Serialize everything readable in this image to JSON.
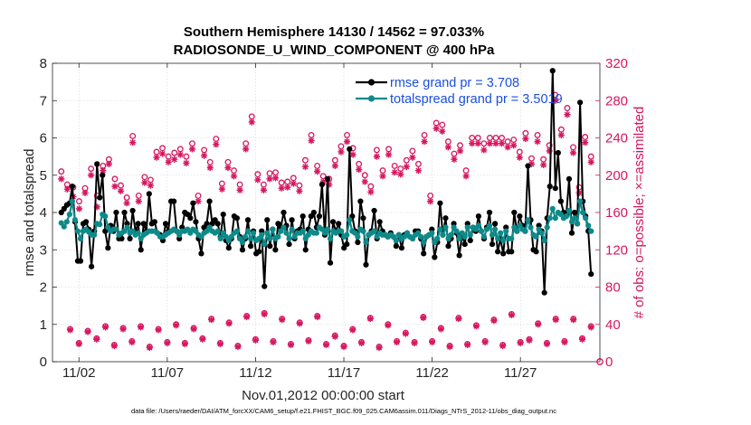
{
  "chart_data": {
    "type": "line",
    "title": "Southern Hemisphere 14130 / 14562 = 97.033%",
    "subtitle": "RADIOSONDE_U_WIND_COMPONENT @ 400 hPa",
    "xlabel": "Nov.01,2012 00:00:00 start",
    "ylabel": "rmse and totalspread",
    "ylabel_right": "# of obs: o=possible; ×=assimilated",
    "footnote": "data file: /Users/raeder/DAI/ATM_forcXX/CAM6_setup/f.e21.FHIST_BGC.f09_025.CAM6assim.011/Diags_NTrS_2012-11/obs_diag_output.nc",
    "xlim": [
      0.5,
      31.5
    ],
    "ylim": [
      0,
      8
    ],
    "ylim_right": [
      0,
      320
    ],
    "x_ticks": [
      2,
      7,
      12,
      17,
      22,
      27
    ],
    "x_tick_labels": [
      "11/02",
      "11/07",
      "11/12",
      "11/17",
      "11/22",
      "11/27"
    ],
    "y_ticks": [
      0,
      1,
      2,
      3,
      4,
      5,
      6,
      7,
      8
    ],
    "y_tick_labels": [
      "0",
      "1",
      "2",
      "3",
      "4",
      "5",
      "6",
      "7",
      "8"
    ],
    "y_ticks_right": [
      0,
      40,
      80,
      120,
      160,
      200,
      240,
      280,
      320
    ],
    "y_tick_labels_right": [
      "0",
      "40",
      "80",
      "120",
      "160",
      "200",
      "240",
      "280",
      "320"
    ],
    "series": [
      {
        "name": "rmse",
        "legend": "rmse grand pr = 3.708",
        "color": "#000000",
        "values": [
          4.0,
          4.1,
          4.2,
          4.25,
          4.7,
          3.75,
          2.7,
          2.7,
          3.7,
          3.75,
          3.55,
          2.55,
          3.5,
          5.3,
          4.4,
          5.0,
          3.5,
          3.05,
          3.65,
          3.5,
          4.0,
          3.3,
          3.3,
          4.0,
          3.7,
          3.3,
          4.05,
          3.5,
          3.7,
          3.0,
          3.7,
          3.5,
          4.5,
          3.7,
          3.75,
          3.45,
          3.4,
          3.25,
          3.7,
          3.5,
          4.3,
          4.3,
          3.5,
          3.3,
          3.6,
          4.0,
          3.95,
          3.85,
          4.25,
          3.75,
          3.3,
          2.9,
          3.6,
          3.7,
          4.3,
          3.7,
          3.8,
          3.7,
          3.35,
          3.95,
          3.25,
          3.05,
          3.3,
          3.9,
          3.85,
          3.35,
          3.0,
          3.3,
          3.8,
          3.1,
          3.5,
          2.9,
          2.95,
          3.5,
          2.02,
          3.8,
          3.1,
          3.55,
          3.0,
          3.7,
          3.6,
          4.0,
          3.65,
          3.15,
          3.8,
          3.3,
          3.5,
          3.55,
          3.9,
          3.0,
          3.55,
          3.9,
          4.0,
          3.6,
          3.9,
          4.75,
          3.4,
          4.9,
          2.65,
          3.75,
          3.5,
          3.7,
          3.4,
          3.05,
          3.15,
          5.7,
          3.9,
          3.5,
          3.2,
          4.3,
          3.85,
          2.6,
          3.4,
          3.5,
          4.05,
          3.3,
          3.75,
          3.5,
          3.4,
          3.35,
          3.45,
          3.35,
          3.1,
          3.4,
          3.05,
          3.4,
          3.45,
          3.35,
          3.3,
          3.5,
          3.5,
          3.3,
          2.9,
          3.35,
          3.4,
          3.55,
          2.8,
          3.2,
          4.25,
          3.4,
          3.85,
          3.1,
          3.3,
          3.7,
          3.45,
          2.85,
          3.4,
          3.15,
          3.7,
          3.25,
          3.6,
          3.5,
          3.9,
          3.5,
          3.3,
          3.6,
          4.0,
          3.15,
          3.7,
          2.95,
          3.3,
          2.9,
          3.6,
          2.95,
          2.95,
          4.0,
          3.5,
          3.9,
          3.65,
          3.5,
          5.25,
          3.8,
          3.0,
          2.95,
          3.65,
          3.5,
          1.85,
          3.85,
          4.7,
          7.8,
          4.65,
          5.6,
          4.3,
          4.0,
          3.95,
          4.9,
          3.45,
          4.0,
          3.7,
          6.95,
          4.3,
          3.9,
          3.5,
          2.35
        ]
      },
      {
        "name": "totalspread",
        "legend": "totalspread grand pr = 3.5019",
        "color": "#0d8a8a",
        "values": [
          3.72,
          3.62,
          3.75,
          3.95,
          4.3,
          3.8,
          3.5,
          3.3,
          3.5,
          3.55,
          3.48,
          3.4,
          3.4,
          3.7,
          3.68,
          3.95,
          3.9,
          3.6,
          3.5,
          3.55,
          3.55,
          3.4,
          3.45,
          3.5,
          3.6,
          3.45,
          3.5,
          3.4,
          3.45,
          3.3,
          3.4,
          3.45,
          3.5,
          3.5,
          3.5,
          3.45,
          3.35,
          3.35,
          3.4,
          3.45,
          3.5,
          3.55,
          3.5,
          3.4,
          3.5,
          3.5,
          3.55,
          3.45,
          3.55,
          3.5,
          3.4,
          3.35,
          3.45,
          3.5,
          3.6,
          3.5,
          3.45,
          3.5,
          3.3,
          3.45,
          3.35,
          3.25,
          3.35,
          3.45,
          3.5,
          3.3,
          3.2,
          3.35,
          3.5,
          3.3,
          3.45,
          3.25,
          3.3,
          3.4,
          3.15,
          3.45,
          3.3,
          3.55,
          3.3,
          3.35,
          3.5,
          3.6,
          3.45,
          3.3,
          3.55,
          3.35,
          3.45,
          3.45,
          3.5,
          3.3,
          3.4,
          3.5,
          3.45,
          3.45,
          3.6,
          3.55,
          3.45,
          3.55,
          3.3,
          3.5,
          3.45,
          3.5,
          3.5,
          3.35,
          3.4,
          3.8,
          3.5,
          3.45,
          3.35,
          3.55,
          3.5,
          3.2,
          3.4,
          3.45,
          3.5,
          3.35,
          3.45,
          3.4,
          3.4,
          3.35,
          3.4,
          3.35,
          3.25,
          3.4,
          3.3,
          3.35,
          3.45,
          3.35,
          3.3,
          3.4,
          3.45,
          3.35,
          3.2,
          3.35,
          3.4,
          3.45,
          3.2,
          3.3,
          3.55,
          3.4,
          3.6,
          3.3,
          3.4,
          3.6,
          3.5,
          3.3,
          3.45,
          3.35,
          3.6,
          3.4,
          3.6,
          3.55,
          3.65,
          3.5,
          3.35,
          3.55,
          3.65,
          3.4,
          3.55,
          3.3,
          3.45,
          3.25,
          3.5,
          3.3,
          3.3,
          3.6,
          3.5,
          3.65,
          3.55,
          3.5,
          3.8,
          3.6,
          3.4,
          3.35,
          3.55,
          3.45,
          3.25,
          3.6,
          3.85,
          4.1,
          3.85,
          4.0,
          3.95,
          3.85,
          3.9,
          4.05,
          3.75,
          3.85,
          3.7,
          4.3,
          4.0,
          3.85,
          3.65,
          3.5
        ]
      },
      {
        "name": "obs_possible_00Z",
        "marker": "o",
        "color": "#d6175f",
        "values": [
          204,
          190,
          187,
          172,
          186,
          207,
          178,
          210,
          217,
          196,
          189,
          176,
          242,
          178,
          198,
          195,
          225,
          229,
          220,
          224,
          228,
          220,
          234,
          178,
          227,
          214,
          239,
          191,
          214,
          205,
          190,
          234,
          263,
          201,
          190,
          202,
          203,
          192,
          193,
          197,
          189,
          216,
          243,
          210,
          199,
          196,
          216,
          231,
          243,
          229,
          212,
          200,
          188,
          227,
          205,
          228,
          210,
          207,
          216,
          226,
          212,
          243,
          178,
          256,
          254,
          236,
          223,
          232,
          205,
          240,
          240,
          234,
          240,
          240,
          240,
          236,
          238,
          225,
          245,
          218,
          243,
          217,
          232,
          286,
          249,
          272,
          230,
          187,
          241,
          220
        ]
      },
      {
        "name": "obs_assimilated_00Z",
        "marker": "x",
        "color": "#d6175f",
        "values": [
          196,
          185,
          177,
          164,
          181,
          200,
          166,
          205,
          212,
          188,
          183,
          170,
          235,
          172,
          192,
          189,
          219,
          223,
          214,
          217,
          222,
          213,
          228,
          172,
          221,
          208,
          233,
          185,
          208,
          199,
          184,
          228,
          257,
          195,
          184,
          196,
          197,
          186,
          187,
          191,
          183,
          209,
          237,
          204,
          193,
          190,
          210,
          225,
          236,
          222,
          206,
          193,
          182,
          220,
          199,
          222,
          203,
          201,
          209,
          219,
          205,
          236,
          172,
          250,
          247,
          230,
          217,
          226,
          199,
          234,
          234,
          227,
          234,
          234,
          234,
          230,
          232,
          219,
          239,
          212,
          236,
          211,
          226,
          280,
          243,
          265,
          224,
          181,
          235,
          214
        ]
      },
      {
        "name": "obs_possible_12Z",
        "marker": "o",
        "color": "#d6175f",
        "values": [
          35,
          20,
          33,
          25,
          38,
          18,
          36,
          22,
          38,
          16,
          35,
          21,
          40,
          20,
          36,
          25,
          46,
          20,
          42,
          17,
          49,
          24,
          52,
          22,
          46,
          19,
          42,
          23,
          49,
          19,
          28,
          17,
          35,
          21,
          47,
          16,
          40,
          22,
          31,
          21,
          48,
          22,
          36,
          17,
          47,
          19,
          39,
          22,
          45,
          18,
          51,
          21,
          24,
          41,
          20,
          46,
          22,
          46,
          25,
          38
        ]
      },
      {
        "name": "obs_assimilated_12Z",
        "marker": "x",
        "color": "#d6175f",
        "values": [
          34,
          19,
          32,
          24,
          37,
          17,
          35,
          21,
          37,
          15,
          34,
          20,
          39,
          19,
          35,
          24,
          45,
          19,
          41,
          16,
          48,
          23,
          51,
          21,
          45,
          18,
          41,
          22,
          48,
          18,
          27,
          16,
          34,
          20,
          46,
          15,
          39,
          21,
          30,
          20,
          47,
          21,
          35,
          16,
          46,
          18,
          38,
          21,
          44,
          17,
          50,
          20,
          23,
          40,
          19,
          45,
          21,
          45,
          24,
          37
        ]
      }
    ]
  }
}
